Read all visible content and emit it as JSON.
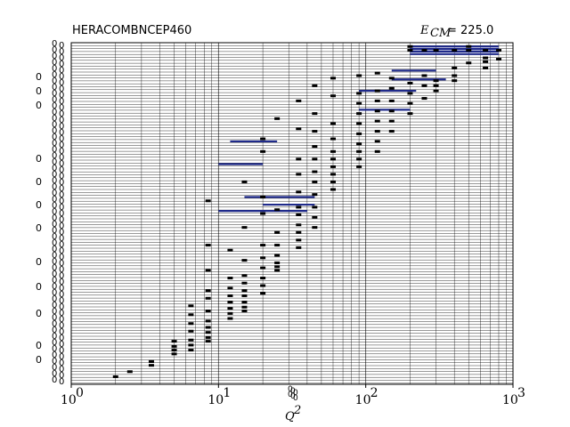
{
  "chart_data": {
    "type": "scatter",
    "title_left": "HERACOMBNCEP460",
    "title_right_symbol": "E",
    "title_right_subscript": "CM",
    "title_right_value": "= 225.0",
    "xlabel": "Q",
    "xlabel_superscript": "2",
    "x_scale": "log",
    "xlim": [
      1,
      1000
    ],
    "x_ticks": [
      {
        "base": "10",
        "exp": "0"
      },
      {
        "base": "10",
        "exp": "1"
      },
      {
        "base": "10",
        "exp": "2"
      },
      {
        "base": "10",
        "exp": "3"
      }
    ],
    "grid": true,
    "legend": "none",
    "colors": {
      "band": "#1f2a8a",
      "marker": "#000000",
      "grid": "#000000"
    },
    "bands": [
      {
        "y": 0.03,
        "x0": 200,
        "x1": 800
      },
      {
        "y": 0.05,
        "x0": 200,
        "x1": 800
      },
      {
        "y": 0.07,
        "x0": 200,
        "x1": 800
      },
      {
        "y": 0.09,
        "x0": 200,
        "x1": 800
      },
      {
        "y": 0.22,
        "x0": 150,
        "x1": 300
      },
      {
        "y": 0.29,
        "x0": 150,
        "x1": 350
      },
      {
        "y": 0.38,
        "x0": 90,
        "x1": 220
      },
      {
        "y": 0.53,
        "x0": 90,
        "x1": 200
      },
      {
        "y": 0.78,
        "x0": 12,
        "x1": 25
      },
      {
        "y": 0.96,
        "x0": 10,
        "x1": 20
      },
      {
        "y": 1.22,
        "x0": 15,
        "x1": 45
      },
      {
        "y": 1.28,
        "x0": 20,
        "x1": 45
      },
      {
        "y": 1.33,
        "x0": 10,
        "x1": 40
      }
    ],
    "points": [
      {
        "x": 2.0,
        "y": 2.64
      },
      {
        "x": 2.5,
        "y": 2.6
      },
      {
        "x": 3.5,
        "y": 2.55
      },
      {
        "x": 3.5,
        "y": 2.52
      },
      {
        "x": 5.0,
        "y": 2.46
      },
      {
        "x": 5.0,
        "y": 2.43
      },
      {
        "x": 5.0,
        "y": 2.4
      },
      {
        "x": 5.0,
        "y": 2.36
      },
      {
        "x": 6.5,
        "y": 2.43
      },
      {
        "x": 6.5,
        "y": 2.39
      },
      {
        "x": 6.5,
        "y": 2.35
      },
      {
        "x": 6.5,
        "y": 2.28
      },
      {
        "x": 6.5,
        "y": 2.22
      },
      {
        "x": 6.5,
        "y": 2.15
      },
      {
        "x": 6.5,
        "y": 2.08
      },
      {
        "x": 8.5,
        "y": 2.36
      },
      {
        "x": 8.5,
        "y": 2.33
      },
      {
        "x": 8.5,
        "y": 2.29
      },
      {
        "x": 8.5,
        "y": 2.25
      },
      {
        "x": 8.5,
        "y": 2.2
      },
      {
        "x": 8.5,
        "y": 2.12
      },
      {
        "x": 8.5,
        "y": 2.02
      },
      {
        "x": 8.5,
        "y": 1.96
      },
      {
        "x": 8.5,
        "y": 1.8
      },
      {
        "x": 8.5,
        "y": 1.6
      },
      {
        "x": 8.5,
        "y": 1.25
      },
      {
        "x": 12,
        "y": 2.18
      },
      {
        "x": 12,
        "y": 2.14
      },
      {
        "x": 12,
        "y": 2.1
      },
      {
        "x": 12,
        "y": 2.05
      },
      {
        "x": 12,
        "y": 2.0
      },
      {
        "x": 12,
        "y": 1.94
      },
      {
        "x": 12,
        "y": 1.86
      },
      {
        "x": 12,
        "y": 1.64
      },
      {
        "x": 15,
        "y": 2.12
      },
      {
        "x": 15,
        "y": 2.09
      },
      {
        "x": 15,
        "y": 2.05
      },
      {
        "x": 15,
        "y": 2.0
      },
      {
        "x": 15,
        "y": 1.96
      },
      {
        "x": 15,
        "y": 1.9
      },
      {
        "x": 15,
        "y": 1.84
      },
      {
        "x": 15,
        "y": 1.72
      },
      {
        "x": 15,
        "y": 1.46
      },
      {
        "x": 15,
        "y": 1.1
      },
      {
        "x": 20,
        "y": 1.98
      },
      {
        "x": 20,
        "y": 1.92
      },
      {
        "x": 20,
        "y": 1.86
      },
      {
        "x": 20,
        "y": 1.78
      },
      {
        "x": 20,
        "y": 1.7
      },
      {
        "x": 20,
        "y": 1.6
      },
      {
        "x": 20,
        "y": 1.35
      },
      {
        "x": 20,
        "y": 1.22
      },
      {
        "x": 20,
        "y": 0.86
      },
      {
        "x": 20,
        "y": 0.76
      },
      {
        "x": 25,
        "y": 1.8
      },
      {
        "x": 25,
        "y": 1.77
      },
      {
        "x": 25,
        "y": 1.74
      },
      {
        "x": 25,
        "y": 1.68
      },
      {
        "x": 25,
        "y": 1.6
      },
      {
        "x": 25,
        "y": 1.5
      },
      {
        "x": 25,
        "y": 1.32
      },
      {
        "x": 25,
        "y": 0.6
      },
      {
        "x": 35,
        "y": 1.62
      },
      {
        "x": 35,
        "y": 1.56
      },
      {
        "x": 35,
        "y": 1.5
      },
      {
        "x": 35,
        "y": 1.44
      },
      {
        "x": 35,
        "y": 1.36
      },
      {
        "x": 35,
        "y": 1.3
      },
      {
        "x": 35,
        "y": 1.18
      },
      {
        "x": 35,
        "y": 1.04
      },
      {
        "x": 35,
        "y": 0.92
      },
      {
        "x": 35,
        "y": 0.68
      },
      {
        "x": 35,
        "y": 0.46
      },
      {
        "x": 45,
        "y": 1.46
      },
      {
        "x": 45,
        "y": 1.38
      },
      {
        "x": 45,
        "y": 1.3
      },
      {
        "x": 45,
        "y": 1.2
      },
      {
        "x": 45,
        "y": 1.1
      },
      {
        "x": 45,
        "y": 1.02
      },
      {
        "x": 45,
        "y": 0.92
      },
      {
        "x": 45,
        "y": 0.82
      },
      {
        "x": 45,
        "y": 0.7
      },
      {
        "x": 45,
        "y": 0.56
      },
      {
        "x": 45,
        "y": 0.34
      },
      {
        "x": 60,
        "y": 1.16
      },
      {
        "x": 60,
        "y": 1.1
      },
      {
        "x": 60,
        "y": 1.04
      },
      {
        "x": 60,
        "y": 0.98
      },
      {
        "x": 60,
        "y": 0.92
      },
      {
        "x": 60,
        "y": 0.86
      },
      {
        "x": 60,
        "y": 0.76
      },
      {
        "x": 60,
        "y": 0.64
      },
      {
        "x": 60,
        "y": 0.42
      },
      {
        "x": 60,
        "y": 0.28
      },
      {
        "x": 90,
        "y": 0.98
      },
      {
        "x": 90,
        "y": 0.92
      },
      {
        "x": 90,
        "y": 0.86
      },
      {
        "x": 90,
        "y": 0.8
      },
      {
        "x": 90,
        "y": 0.72
      },
      {
        "x": 90,
        "y": 0.64
      },
      {
        "x": 90,
        "y": 0.56
      },
      {
        "x": 90,
        "y": 0.48
      },
      {
        "x": 90,
        "y": 0.4
      },
      {
        "x": 90,
        "y": 0.26
      },
      {
        "x": 120,
        "y": 0.86
      },
      {
        "x": 120,
        "y": 0.78
      },
      {
        "x": 120,
        "y": 0.7
      },
      {
        "x": 120,
        "y": 0.62
      },
      {
        "x": 120,
        "y": 0.54
      },
      {
        "x": 120,
        "y": 0.46
      },
      {
        "x": 120,
        "y": 0.38
      },
      {
        "x": 120,
        "y": 0.24
      },
      {
        "x": 150,
        "y": 0.7
      },
      {
        "x": 150,
        "y": 0.62
      },
      {
        "x": 150,
        "y": 0.54
      },
      {
        "x": 150,
        "y": 0.46
      },
      {
        "x": 150,
        "y": 0.36
      },
      {
        "x": 150,
        "y": 0.28
      },
      {
        "x": 200,
        "y": 0.56
      },
      {
        "x": 200,
        "y": 0.48
      },
      {
        "x": 200,
        "y": 0.4
      },
      {
        "x": 200,
        "y": 0.32
      },
      {
        "x": 200,
        "y": 0.06
      },
      {
        "x": 200,
        "y": 0.03
      },
      {
        "x": 250,
        "y": 0.44
      },
      {
        "x": 250,
        "y": 0.34
      },
      {
        "x": 250,
        "y": 0.26
      },
      {
        "x": 250,
        "y": 0.06
      },
      {
        "x": 300,
        "y": 0.38
      },
      {
        "x": 300,
        "y": 0.34
      },
      {
        "x": 300,
        "y": 0.3
      },
      {
        "x": 300,
        "y": 0.06
      },
      {
        "x": 400,
        "y": 0.26
      },
      {
        "x": 400,
        "y": 0.3
      },
      {
        "x": 400,
        "y": 0.2
      },
      {
        "x": 400,
        "y": 0.06
      },
      {
        "x": 500,
        "y": 0.16
      },
      {
        "x": 500,
        "y": 0.06
      },
      {
        "x": 500,
        "y": 0.03
      },
      {
        "x": 650,
        "y": 0.2
      },
      {
        "x": 650,
        "y": 0.15
      },
      {
        "x": 650,
        "y": 0.12
      },
      {
        "x": 650,
        "y": 0.06
      },
      {
        "x": 800,
        "y": 0.13
      },
      {
        "x": 800,
        "y": 0.06
      }
    ],
    "ylim": [
      0,
      2.7
    ]
  }
}
